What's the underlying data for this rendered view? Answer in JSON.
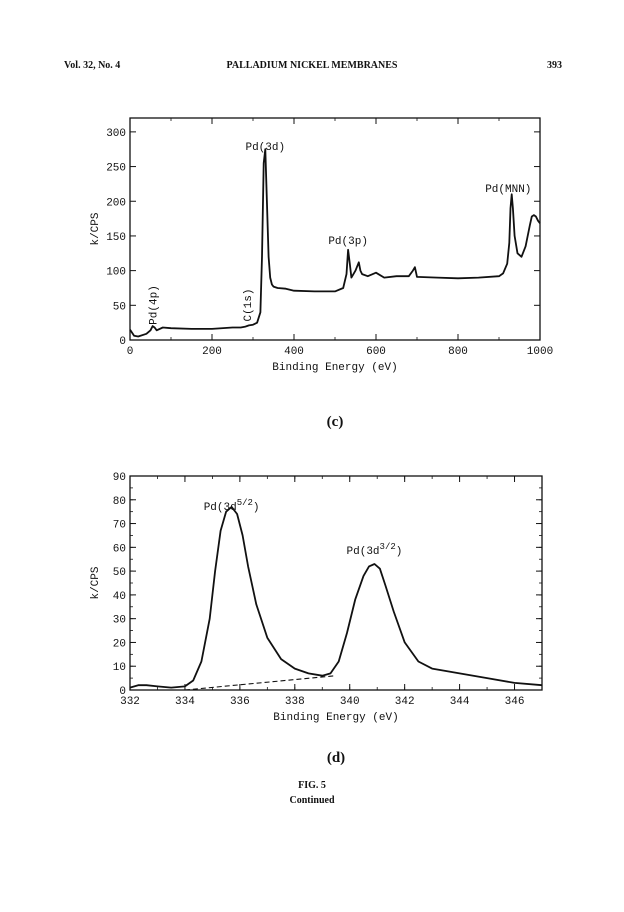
{
  "header": {
    "volume": "Vol. 32, No. 4",
    "title": "PALLADIUM NICKEL MEMBRANES",
    "page_number": "393"
  },
  "figure": {
    "caption": "FIG. 5",
    "continued": "Continued"
  },
  "chart_data": [
    {
      "type": "line",
      "panel_label": "(c)",
      "xlabel": "Binding Energy (eV)",
      "ylabel": "k/CPS",
      "xlim": [
        0,
        1000
      ],
      "ylim": [
        0,
        320
      ],
      "x_ticks": [
        0,
        200,
        400,
        600,
        800,
        1000
      ],
      "y_ticks": [
        0,
        50,
        100,
        150,
        200,
        250,
        300
      ],
      "grid": false,
      "annotations": [
        "Pd(3d)",
        "Pd(MNN)",
        "Pd(3p)",
        "Pd(4p)",
        "C(1s)"
      ],
      "series": [
        {
          "x": [
            0,
            10,
            20,
            40,
            50,
            55,
            60,
            65,
            80,
            100,
            150,
            200,
            250,
            270,
            280,
            285,
            290,
            300,
            310,
            318,
            322,
            326,
            330,
            334,
            338,
            342,
            346,
            350,
            360,
            380,
            400,
            450,
            500,
            520,
            528,
            532,
            536,
            540,
            550,
            558,
            562,
            566,
            580,
            600,
            620,
            650,
            680,
            690,
            695,
            700,
            750,
            800,
            850,
            900,
            910,
            920,
            925,
            928,
            931,
            934,
            938,
            945,
            955,
            965,
            975,
            980,
            985,
            990,
            995,
            1000
          ],
          "values": [
            15,
            6,
            5,
            9,
            14,
            20,
            18,
            14,
            18,
            17,
            16,
            16,
            18,
            18,
            19,
            20,
            21,
            22,
            25,
            40,
            120,
            255,
            275,
            200,
            120,
            90,
            80,
            77,
            75,
            74,
            71,
            70,
            70,
            75,
            95,
            130,
            110,
            90,
            100,
            112,
            100,
            95,
            92,
            97,
            90,
            92,
            92,
            100,
            105,
            91,
            90,
            89,
            90,
            92,
            96,
            110,
            140,
            190,
            210,
            190,
            150,
            125,
            120,
            135,
            165,
            178,
            180,
            178,
            172,
            168
          ]
        }
      ]
    },
    {
      "type": "line",
      "panel_label": "(d)",
      "xlabel": "Binding Energy (eV)",
      "ylabel": "k/CPS",
      "xlim": [
        332,
        347
      ],
      "ylim": [
        0,
        90
      ],
      "x_ticks": [
        332,
        334,
        336,
        338,
        340,
        342,
        344,
        346
      ],
      "y_ticks": [
        0,
        10,
        20,
        30,
        40,
        50,
        60,
        70,
        80,
        90
      ],
      "grid": false,
      "annotations": [
        {
          "main": "Pd(3d",
          "superscript": "5/2",
          "close": ")"
        },
        {
          "main": "Pd(3d",
          "superscript": "3/2",
          "close": ")"
        }
      ],
      "series": [
        {
          "x": [
            332,
            332.3,
            332.6,
            333,
            333.5,
            334,
            334.3,
            334.6,
            334.9,
            335.1,
            335.3,
            335.5,
            335.7,
            335.9,
            336.1,
            336.3,
            336.6,
            337,
            337.5,
            338,
            338.5,
            339,
            339.3,
            339.6,
            339.9,
            340.2,
            340.5,
            340.7,
            340.9,
            341.1,
            341.3,
            341.6,
            342,
            342.5,
            343,
            343.5,
            344,
            345,
            346,
            347
          ],
          "values": [
            1,
            2,
            2,
            1.5,
            1,
            1.5,
            4,
            12,
            30,
            50,
            67,
            75,
            77,
            74,
            65,
            52,
            36,
            22,
            13,
            9,
            7,
            6,
            7,
            12,
            24,
            38,
            48,
            52,
            53,
            51,
            44,
            33,
            20,
            12,
            9,
            8,
            7,
            5,
            3,
            2
          ]
        },
        {
          "name": "",
          "style": "dashed",
          "x": [
            334,
            339.5
          ],
          "values": [
            0,
            6
          ]
        }
      ]
    }
  ]
}
